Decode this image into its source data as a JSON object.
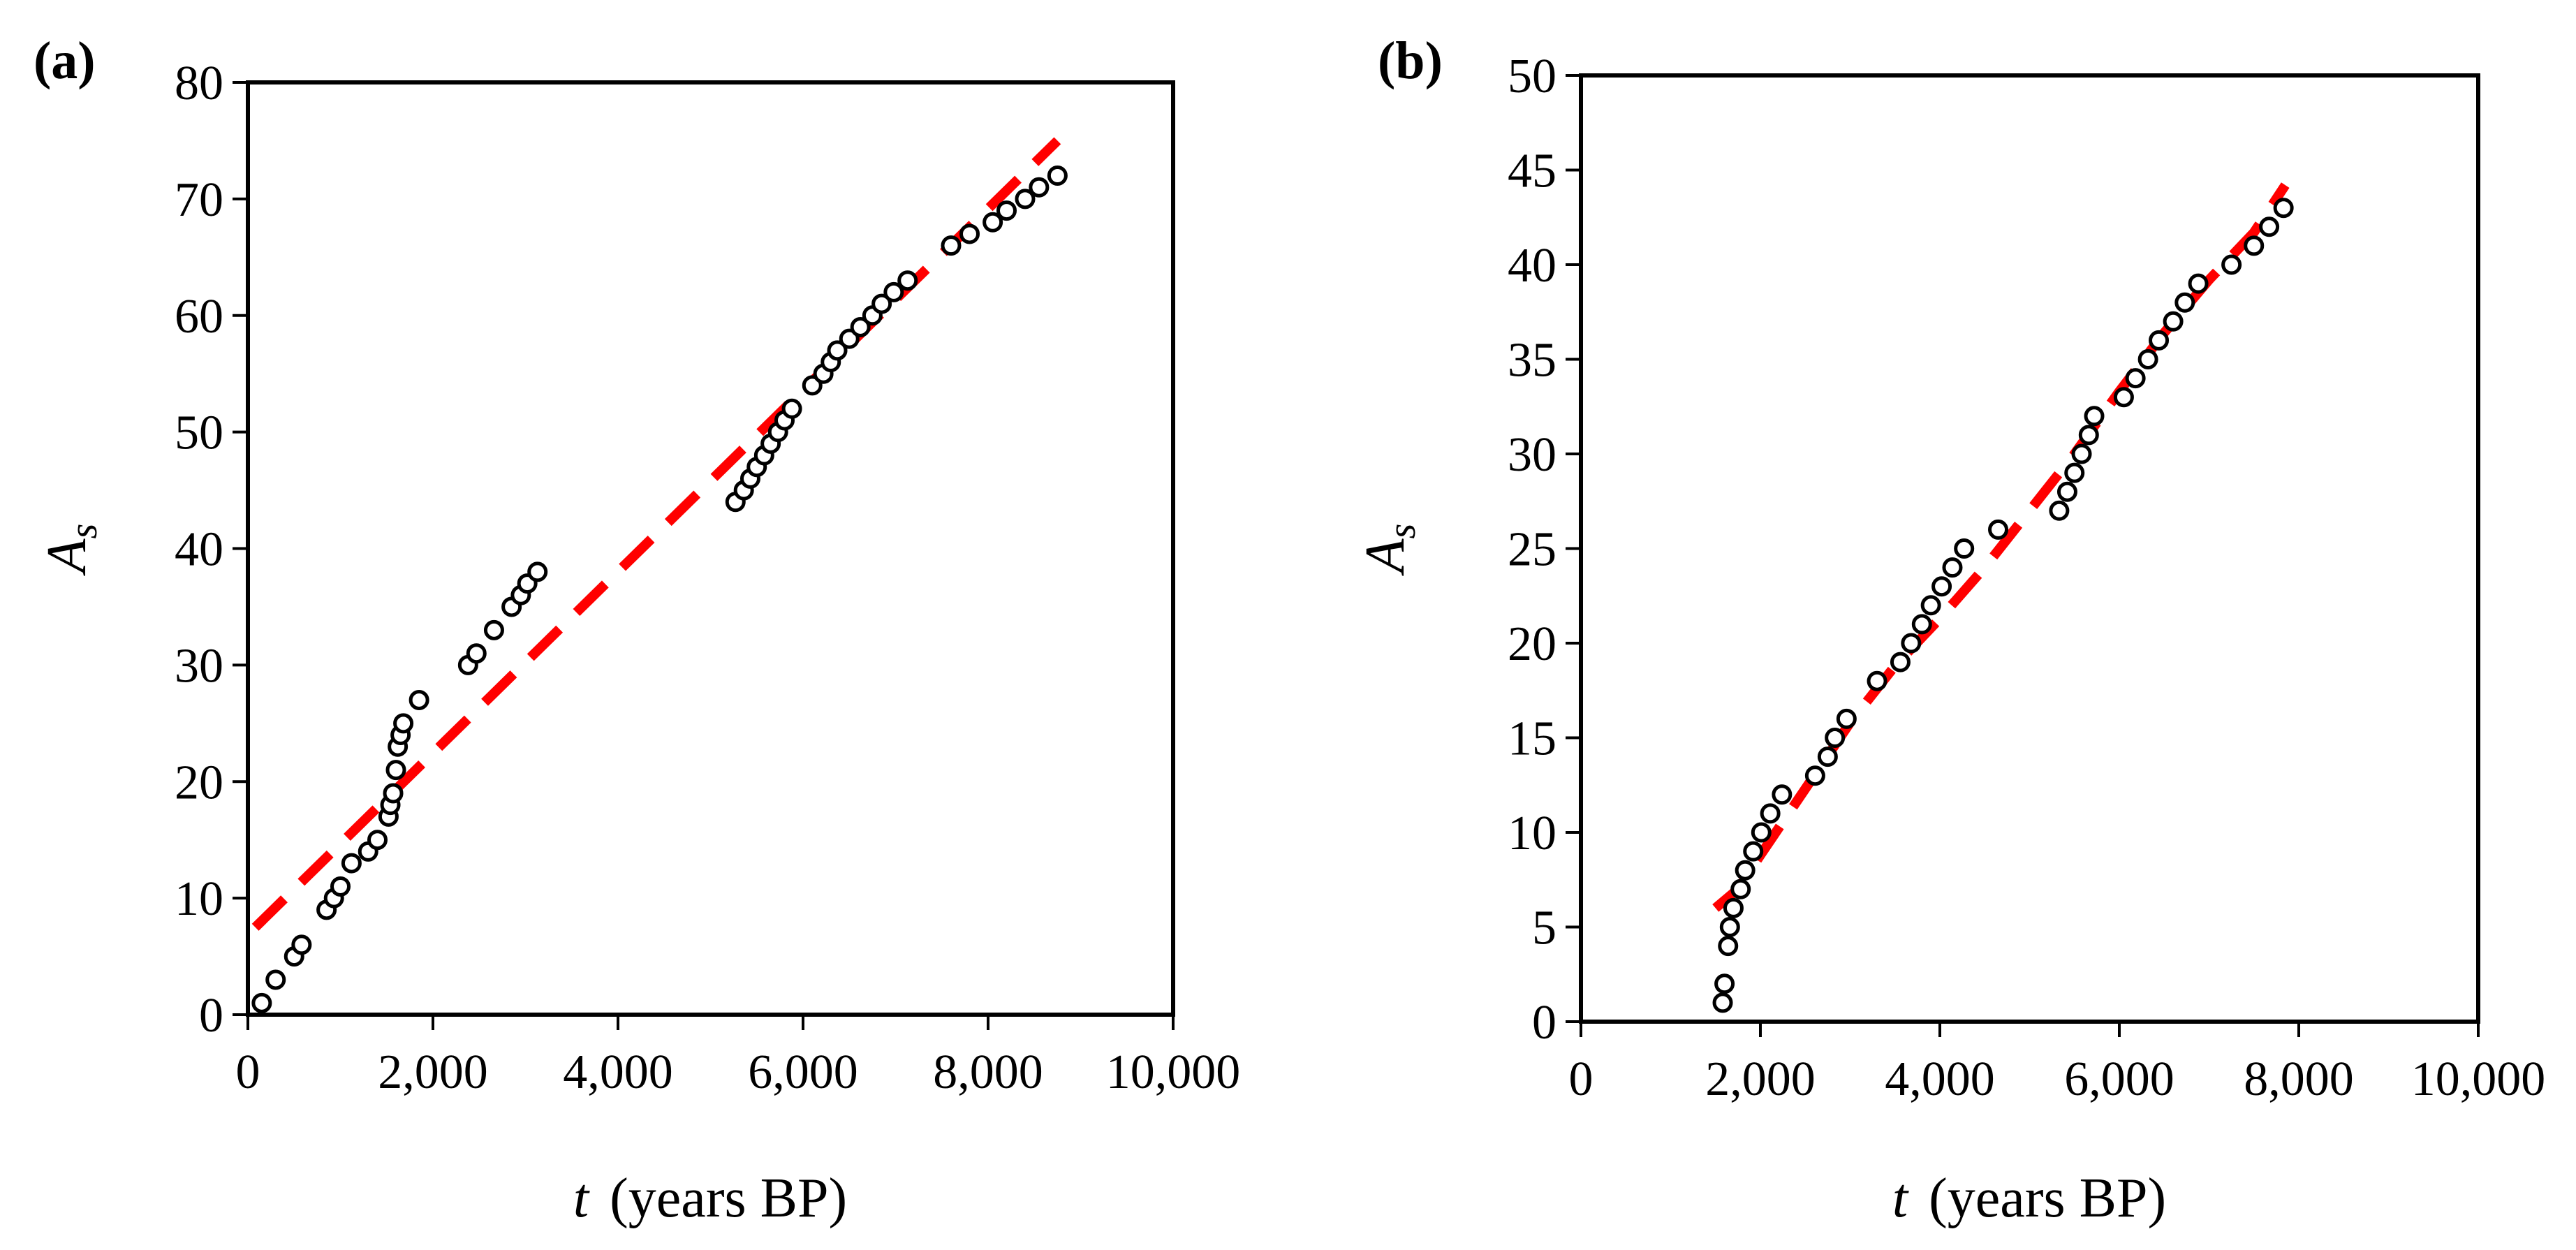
{
  "chart_data": [
    {
      "type": "scatter",
      "panel_label": "(a)",
      "xlabel_var": "t",
      "xlabel_unit": "(years BP)",
      "ylabel_var": "A",
      "ylabel_sub": "s",
      "xlim": [
        0,
        10000
      ],
      "ylim": [
        0,
        80
      ],
      "x_ticks": [
        0,
        2000,
        4000,
        6000,
        8000,
        10000
      ],
      "x_tick_labels": [
        "0",
        "2,000",
        "4,000",
        "6,000",
        "8,000",
        "10,000"
      ],
      "y_ticks": [
        0,
        10,
        20,
        30,
        40,
        50,
        60,
        70,
        80
      ],
      "y_tick_labels": [
        "0",
        "10",
        "20",
        "30",
        "40",
        "50",
        "60",
        "70",
        "80"
      ],
      "grid": false,
      "series": [
        {
          "name": "observations",
          "style": "open-circle",
          "color": "#000000",
          "points": [
            [
              150,
              1
            ],
            [
              300,
              3
            ],
            [
              500,
              5
            ],
            [
              580,
              6
            ],
            [
              850,
              9
            ],
            [
              930,
              10
            ],
            [
              1000,
              11
            ],
            [
              1120,
              13
            ],
            [
              1300,
              14
            ],
            [
              1400,
              15
            ],
            [
              1520,
              17
            ],
            [
              1540,
              18
            ],
            [
              1570,
              19
            ],
            [
              1600,
              21
            ],
            [
              1620,
              23
            ],
            [
              1650,
              24
            ],
            [
              1680,
              25
            ],
            [
              1850,
              27
            ],
            [
              2380,
              30
            ],
            [
              2470,
              31
            ],
            [
              2660,
              33
            ],
            [
              2850,
              35
            ],
            [
              2950,
              36
            ],
            [
              3020,
              37
            ],
            [
              3130,
              38
            ],
            [
              5270,
              44
            ],
            [
              5360,
              45
            ],
            [
              5430,
              46
            ],
            [
              5500,
              47
            ],
            [
              5580,
              48
            ],
            [
              5650,
              49
            ],
            [
              5730,
              50
            ],
            [
              5800,
              51
            ],
            [
              5880,
              52
            ],
            [
              6100,
              54
            ],
            [
              6220,
              55
            ],
            [
              6300,
              56
            ],
            [
              6370,
              57
            ],
            [
              6500,
              58
            ],
            [
              6620,
              59
            ],
            [
              6750,
              60
            ],
            [
              6850,
              61
            ],
            [
              6980,
              62
            ],
            [
              7130,
              63
            ],
            [
              7600,
              66
            ],
            [
              7800,
              67
            ],
            [
              8050,
              68
            ],
            [
              8200,
              69
            ],
            [
              8400,
              70
            ],
            [
              8550,
              71
            ],
            [
              8750,
              72
            ]
          ]
        },
        {
          "name": "fit",
          "style": "dashed-line",
          "color": "#ff0000",
          "line": [
            [
              80,
              7.5
            ],
            [
              8750,
              75
            ]
          ]
        }
      ]
    },
    {
      "type": "scatter",
      "panel_label": "(b)",
      "xlabel_var": "t",
      "xlabel_unit": "(years BP)",
      "ylabel_var": "A",
      "ylabel_sub": "s",
      "xlim": [
        0,
        10000
      ],
      "ylim": [
        0,
        50
      ],
      "x_ticks": [
        0,
        2000,
        4000,
        6000,
        8000,
        10000
      ],
      "x_tick_labels": [
        "0",
        "2,000",
        "4,000",
        "6,000",
        "8,000",
        "10,000"
      ],
      "y_ticks": [
        0,
        5,
        10,
        15,
        20,
        25,
        30,
        35,
        40,
        45,
        50
      ],
      "y_tick_labels": [
        "0",
        "5",
        "10",
        "15",
        "20",
        "25",
        "30",
        "35",
        "40",
        "45",
        "50"
      ],
      "grid": false,
      "series": [
        {
          "name": "observations",
          "style": "open-circle",
          "color": "#000000",
          "points": [
            [
              1580,
              1
            ],
            [
              1600,
              2
            ],
            [
              1640,
              4
            ],
            [
              1660,
              5
            ],
            [
              1700,
              6
            ],
            [
              1780,
              7
            ],
            [
              1830,
              8
            ],
            [
              1920,
              9
            ],
            [
              2010,
              10
            ],
            [
              2110,
              11
            ],
            [
              2240,
              12
            ],
            [
              2610,
              13
            ],
            [
              2750,
              14
            ],
            [
              2830,
              15
            ],
            [
              2960,
              16
            ],
            [
              3300,
              18
            ],
            [
              3560,
              19
            ],
            [
              3680,
              20
            ],
            [
              3800,
              21
            ],
            [
              3900,
              22
            ],
            [
              4020,
              23
            ],
            [
              4140,
              24
            ],
            [
              4270,
              25
            ],
            [
              4650,
              26
            ],
            [
              5330,
              27
            ],
            [
              5420,
              28
            ],
            [
              5500,
              29
            ],
            [
              5580,
              30
            ],
            [
              5660,
              31
            ],
            [
              5720,
              32
            ],
            [
              6050,
              33
            ],
            [
              6180,
              34
            ],
            [
              6320,
              35
            ],
            [
              6440,
              36
            ],
            [
              6600,
              37
            ],
            [
              6730,
              38
            ],
            [
              6880,
              39
            ],
            [
              7250,
              40
            ],
            [
              7500,
              41
            ],
            [
              7670,
              42
            ],
            [
              7830,
              43
            ]
          ]
        },
        {
          "name": "fit",
          "style": "dashed-line",
          "color": "#ff0000",
          "line": [
            [
              1500,
              6
            ],
            [
              1750,
              7
            ],
            [
              2000,
              8.8
            ],
            [
              2500,
              12.3
            ],
            [
              3000,
              15.8
            ],
            [
              3500,
              18.8
            ],
            [
              4000,
              21.3
            ],
            [
              4500,
              24
            ],
            [
              5000,
              27
            ],
            [
              5500,
              30
            ],
            [
              6000,
              33.3
            ],
            [
              6500,
              36.4
            ],
            [
              7000,
              39.2
            ],
            [
              7500,
              41.7
            ],
            [
              7850,
              44.2
            ]
          ]
        }
      ]
    }
  ]
}
